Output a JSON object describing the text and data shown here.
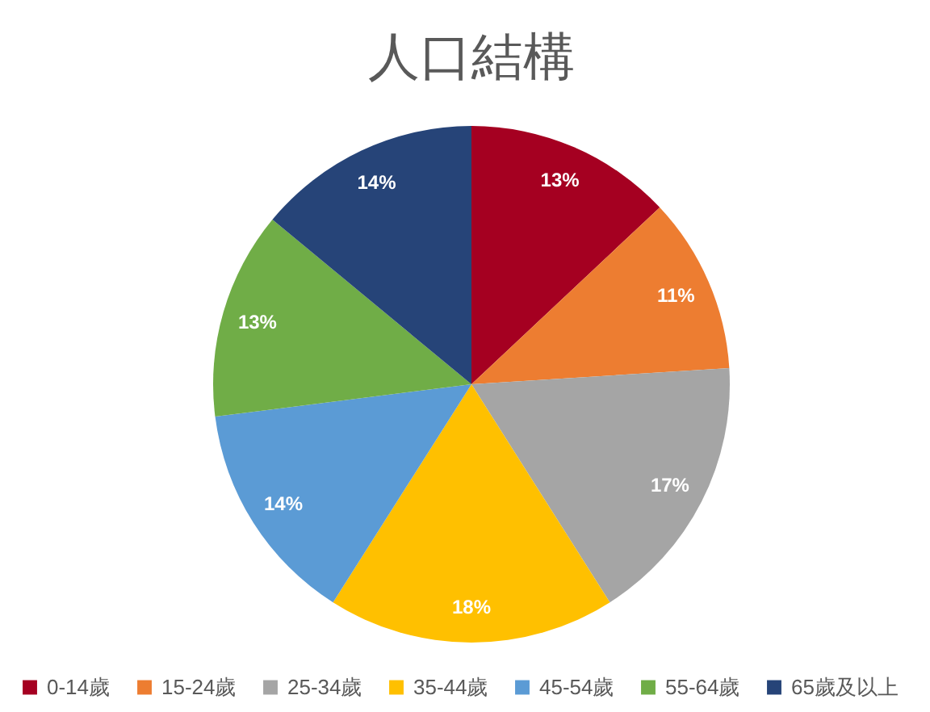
{
  "chart_data": {
    "type": "pie",
    "title": "人口結構",
    "categories": [
      "0-14歲",
      "15-24歲",
      "25-34歲",
      "35-44歲",
      "45-54歲",
      "55-64歲",
      "65歲及以上"
    ],
    "values": [
      13,
      11,
      17,
      18,
      14,
      13,
      14
    ],
    "colors": [
      "#A50021",
      "#ED7D31",
      "#A5A5A5",
      "#FFC000",
      "#5B9BD5",
      "#70AD47",
      "#264478"
    ],
    "value_labels": [
      "13%",
      "11%",
      "17%",
      "18%",
      "14%",
      "13%",
      "14%"
    ],
    "legend": "bottom"
  }
}
